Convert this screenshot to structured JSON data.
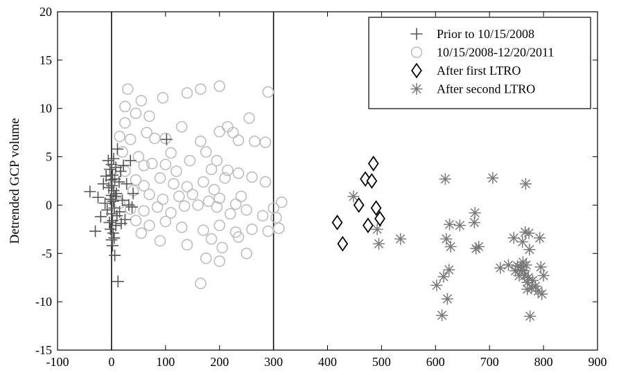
{
  "chart_data": {
    "type": "scatter",
    "title": "",
    "xlabel": "",
    "ylabel": "Detrended GCP volume",
    "xlim": [
      -100,
      900
    ],
    "ylim": [
      -15,
      20
    ],
    "xticks": [
      -100,
      0,
      100,
      200,
      300,
      400,
      500,
      600,
      700,
      800,
      900
    ],
    "yticks": [
      -15,
      -10,
      -5,
      0,
      5,
      10,
      15,
      20
    ],
    "xtick_labels": [
      "-100",
      "0",
      "100",
      "200",
      "300",
      "400",
      "500",
      "600",
      "700",
      "800",
      "900"
    ],
    "ytick_labels": [
      "-15",
      "-10",
      "-5",
      "0",
      "5",
      "10",
      "15",
      "20"
    ],
    "grid": false,
    "legend_position": "top-right",
    "vertical_lines_x": [
      0,
      300
    ],
    "series": [
      {
        "name": "Prior to 10/15/2008",
        "marker": "plus",
        "color": "#555555",
        "points": [
          [
            -40,
            1.4
          ],
          [
            -30,
            -2.7
          ],
          [
            -25,
            0.8
          ],
          [
            -20,
            -1.2
          ],
          [
            -15,
            2.2
          ],
          [
            -12,
            0.2
          ],
          [
            -10,
            3.0
          ],
          [
            -8,
            -0.5
          ],
          [
            -6,
            4.6
          ],
          [
            -5,
            1.8
          ],
          [
            -4,
            -1.8
          ],
          [
            -3,
            3.7
          ],
          [
            -2,
            0.6
          ],
          [
            -2,
            -2.5
          ],
          [
            -1,
            2.6
          ],
          [
            0,
            -3.6
          ],
          [
            0,
            4.2
          ],
          [
            0,
            1.0
          ],
          [
            1,
            -0.9
          ],
          [
            1,
            2.0
          ],
          [
            2,
            -4.2
          ],
          [
            2,
            3.1
          ],
          [
            2,
            -1.6
          ],
          [
            3,
            0.4
          ],
          [
            3,
            -2.9
          ],
          [
            4,
            4.8
          ],
          [
            4,
            1.5
          ],
          [
            5,
            -0.3
          ],
          [
            5,
            -3.4
          ],
          [
            6,
            2.7
          ],
          [
            6,
            -5.2
          ],
          [
            7,
            0.9
          ],
          [
            8,
            3.9
          ],
          [
            8,
            -2.1
          ],
          [
            9,
            1.2
          ],
          [
            10,
            -1.1
          ],
          [
            11,
            5.8
          ],
          [
            12,
            -7.9
          ],
          [
            14,
            2.4
          ],
          [
            15,
            -0.7
          ],
          [
            17,
            3.5
          ],
          [
            18,
            -1.9
          ],
          [
            20,
            0.5
          ],
          [
            22,
            4.1
          ],
          [
            25,
            -1.5
          ],
          [
            28,
            2.2
          ],
          [
            32,
            0.0
          ],
          [
            35,
            4.6
          ],
          [
            38,
            -0.2
          ],
          [
            40,
            1.2
          ],
          [
            102,
            6.8
          ]
        ]
      },
      {
        "name": "10/15/2008-12/20/2011",
        "marker": "circle",
        "color": "#bdbdbd",
        "points": [
          [
            30,
            12.0
          ],
          [
            55,
            10.8
          ],
          [
            70,
            9.2
          ],
          [
            95,
            11.1
          ],
          [
            140,
            11.6
          ],
          [
            165,
            12.0
          ],
          [
            200,
            12.3
          ],
          [
            290,
            11.7
          ],
          [
            25,
            8.5
          ],
          [
            45,
            9.5
          ],
          [
            80,
            6.9
          ],
          [
            130,
            8.1
          ],
          [
            200,
            7.6
          ],
          [
            225,
            7.5
          ],
          [
            255,
            9.0
          ],
          [
            215,
            8.1
          ],
          [
            15,
            7.1
          ],
          [
            35,
            6.8
          ],
          [
            65,
            7.5
          ],
          [
            100,
            6.9
          ],
          [
            165,
            6.6
          ],
          [
            235,
            6.7
          ],
          [
            265,
            6.6
          ],
          [
            285,
            6.5
          ],
          [
            20,
            5.5
          ],
          [
            50,
            5.0
          ],
          [
            75,
            4.3
          ],
          [
            100,
            4.2
          ],
          [
            120,
            3.5
          ],
          [
            145,
            4.6
          ],
          [
            175,
            5.5
          ],
          [
            195,
            4.6
          ],
          [
            215,
            3.6
          ],
          [
            235,
            3.3
          ],
          [
            260,
            2.9
          ],
          [
            25,
            3.5
          ],
          [
            45,
            2.6
          ],
          [
            60,
            2.0
          ],
          [
            90,
            2.8
          ],
          [
            115,
            2.2
          ],
          [
            140,
            1.9
          ],
          [
            170,
            2.4
          ],
          [
            190,
            1.6
          ],
          [
            210,
            2.8
          ],
          [
            240,
            0.9
          ],
          [
            285,
            2.4
          ],
          [
            40,
            1.5
          ],
          [
            70,
            1.1
          ],
          [
            95,
            0.6
          ],
          [
            125,
            0.9
          ],
          [
            150,
            1.1
          ],
          [
            180,
            0.4
          ],
          [
            200,
            0.7
          ],
          [
            230,
            0.1
          ],
          [
            15,
            0.2
          ],
          [
            35,
            -0.4
          ],
          [
            60,
            -0.6
          ],
          [
            85,
            -0.2
          ],
          [
            110,
            -0.8
          ],
          [
            135,
            -0.1
          ],
          [
            160,
            0.0
          ],
          [
            195,
            -0.2
          ],
          [
            220,
            -0.9
          ],
          [
            250,
            -0.5
          ],
          [
            300,
            -0.3
          ],
          [
            315,
            0.3
          ],
          [
            305,
            -1.3
          ],
          [
            310,
            -2.4
          ],
          [
            280,
            -1.1
          ],
          [
            45,
            -1.6
          ],
          [
            70,
            -2.1
          ],
          [
            100,
            -1.7
          ],
          [
            130,
            -2.3
          ],
          [
            170,
            -2.6
          ],
          [
            200,
            -2.1
          ],
          [
            230,
            -2.8
          ],
          [
            260,
            -2.5
          ],
          [
            290,
            -2.7
          ],
          [
            55,
            -2.9
          ],
          [
            90,
            -3.7
          ],
          [
            140,
            -4.1
          ],
          [
            185,
            -3.5
          ],
          [
            205,
            -4.4
          ],
          [
            235,
            -3.3
          ],
          [
            175,
            -5.5
          ],
          [
            200,
            -5.8
          ],
          [
            250,
            -5.0
          ],
          [
            165,
            -8.1
          ],
          [
            25,
            10.2
          ],
          [
            60,
            4.1
          ],
          [
            110,
            5.4
          ],
          [
            185,
            3.7
          ]
        ]
      },
      {
        "name": "After first LTRO",
        "marker": "diamond",
        "color": "#000000",
        "points": [
          [
            418,
            -1.8
          ],
          [
            428,
            -4.0
          ],
          [
            458,
            0.0
          ],
          [
            470,
            2.7
          ],
          [
            475,
            -2.1
          ],
          [
            482,
            2.5
          ],
          [
            485,
            4.3
          ],
          [
            490,
            -0.3
          ],
          [
            497,
            -1.4
          ]
        ]
      },
      {
        "name": "After second LTRO",
        "marker": "asterisk",
        "color": "#7a7a7a",
        "points": [
          [
            448,
            0.9
          ],
          [
            492,
            -2.5
          ],
          [
            495,
            -4.0
          ],
          [
            535,
            -3.5
          ],
          [
            602,
            -8.3
          ],
          [
            612,
            -11.4
          ],
          [
            615,
            -7.4
          ],
          [
            618,
            2.7
          ],
          [
            620,
            -3.5
          ],
          [
            622,
            -9.7
          ],
          [
            625,
            -6.7
          ],
          [
            626,
            -2.0
          ],
          [
            628,
            -4.3
          ],
          [
            645,
            -2.1
          ],
          [
            672,
            -1.8
          ],
          [
            673,
            -0.8
          ],
          [
            675,
            -4.5
          ],
          [
            680,
            -4.3
          ],
          [
            706,
            2.8
          ],
          [
            720,
            -6.5
          ],
          [
            735,
            -6.2
          ],
          [
            745,
            -3.4
          ],
          [
            748,
            -6.8
          ],
          [
            752,
            -6.3
          ],
          [
            755,
            -7.3
          ],
          [
            757,
            -6.4
          ],
          [
            760,
            -6.7
          ],
          [
            761,
            -3.8
          ],
          [
            762,
            -5.9
          ],
          [
            764,
            -6.8
          ],
          [
            765,
            -7.3
          ],
          [
            766,
            -2.8
          ],
          [
            767,
            2.2
          ],
          [
            768,
            -6.2
          ],
          [
            770,
            -8.0
          ],
          [
            772,
            -7.5
          ],
          [
            773,
            -2.9
          ],
          [
            774,
            -4.6
          ],
          [
            775,
            -11.5
          ],
          [
            778,
            -8.6
          ],
          [
            780,
            -7.8
          ],
          [
            785,
            -8.4
          ],
          [
            790,
            -8.9
          ],
          [
            793,
            -3.4
          ],
          [
            795,
            -6.4
          ],
          [
            797,
            -9.2
          ],
          [
            800,
            -7.3
          ],
          [
            770,
            -8.7
          ]
        ]
      }
    ]
  }
}
